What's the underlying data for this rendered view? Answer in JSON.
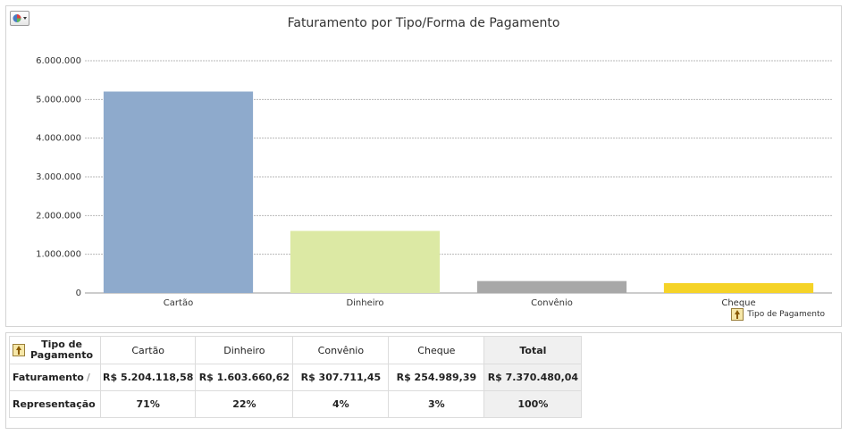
{
  "chart_data": {
    "type": "bar",
    "title": "Faturamento por Tipo/Forma de Pagamento",
    "categories": [
      "Cartão",
      "Dinheiro",
      "Convênio",
      "Cheque"
    ],
    "values": [
      5204118.58,
      1603660.62,
      307711.45,
      254989.39
    ],
    "colors": [
      "#8eaacc",
      "#dce9a4",
      "#a8a8a8",
      "#f5d327"
    ],
    "ylim": [
      0,
      6000000
    ],
    "yticks": [
      "0",
      "1.000.000",
      "2.000.000",
      "3.000.000",
      "4.000.000",
      "5.000.000",
      "6.000.000"
    ],
    "grid": true,
    "xlabel": "",
    "ylabel": ""
  },
  "chart": {
    "drill_label": "Tipo de Pagamento",
    "type_icon": "pie-chart-icon",
    "drill_icon": "drill-up-icon"
  },
  "table": {
    "corner_label_1": "Tipo de",
    "corner_label_2": "Pagamento",
    "columns": [
      "Cartão",
      "Dinheiro",
      "Convênio",
      "Cheque"
    ],
    "total_label": "Total",
    "rows": [
      {
        "label": "Faturamento",
        "values": [
          "R$ 5.204.118,58",
          "R$ 1.603.660,62",
          "R$ 307.711,45",
          "R$ 254.989,39"
        ],
        "total": "R$ 7.370.480,04"
      },
      {
        "label": "Representação",
        "values": [
          "71%",
          "22%",
          "4%",
          "3%"
        ],
        "total": "100%"
      }
    ]
  }
}
